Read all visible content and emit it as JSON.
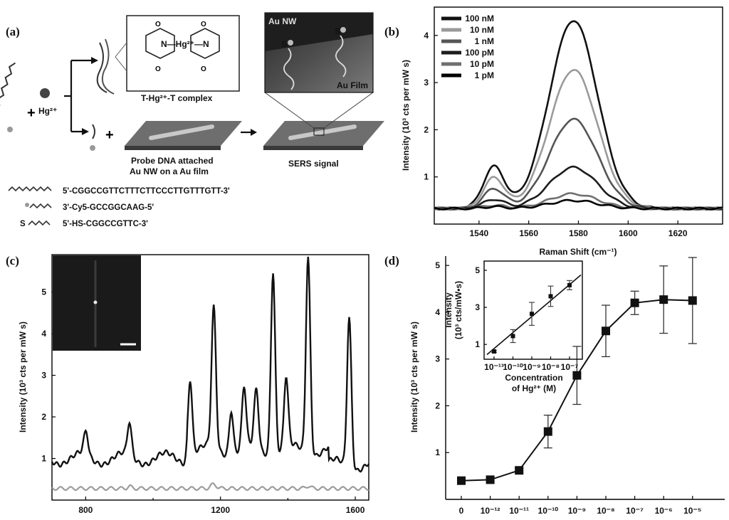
{
  "panel_a": {
    "label": "(a)",
    "hg_label": "Hg²⁺",
    "plus1": "+",
    "plus2": "+",
    "complex_label": "T-Hg²⁺-T complex",
    "hg_center": "N—Hg²⁺—N",
    "probe_label_1": "Probe DNA attached",
    "probe_label_2": "Au NW on a Au film",
    "sers_label": "SERS signal",
    "au_nw": "Au NW",
    "au_film": "Au Film",
    "s_label": "S",
    "seq1": "5'-CGGCCGTTCTTTCTTCCCTTGTTTGTT-3'",
    "seq2": "3'-Cy5-GCCGGCAAG-5'",
    "seq3": "5'-HS-CGGCCGTTC-3'",
    "seq3_prefix": "S"
  },
  "chart_data": [
    {
      "panel": "(b)",
      "type": "line",
      "xlabel": "Raman Shift (cm⁻¹)",
      "ylabel": "Intensity (10³ cts per mW s)",
      "xlim": [
        1522,
        1638
      ],
      "ylim": [
        0,
        4.6
      ],
      "xticks": [
        1540,
        1560,
        1580,
        1600,
        1620
      ],
      "yticks": [
        1,
        2,
        3,
        4
      ],
      "legend": [
        "100 nM",
        "10 nM",
        "1 nM",
        "100 pM",
        "10 pM",
        "1 pM"
      ],
      "legend_colors": [
        "#111111",
        "#9a9a9a",
        "#555555",
        "#1c1c1c",
        "#707070",
        "#000000"
      ],
      "peak_center": 1578,
      "peak_heights": [
        4.32,
        3.27,
        2.22,
        1.2,
        0.64,
        0.5
      ],
      "baseline": 0.33
    },
    {
      "panel": "(c)",
      "type": "line",
      "xlabel": "",
      "ylabel": "Intensity (10³ cts per mW s)",
      "xlim": [
        700,
        1640
      ],
      "ylim": [
        0,
        5.9
      ],
      "xticks": [
        800,
        1200,
        1600
      ],
      "yticks": [
        1,
        2,
        3,
        4,
        5
      ],
      "peaks_black": [
        [
          800,
          1.67
        ],
        [
          930,
          1.85
        ],
        [
          1110,
          2.85
        ],
        [
          1180,
          4.7
        ],
        [
          1232,
          2.1
        ],
        [
          1270,
          2.72
        ],
        [
          1306,
          2.7
        ],
        [
          1356,
          5.45
        ],
        [
          1395,
          2.95
        ],
        [
          1460,
          5.85
        ],
        [
          1582,
          4.4
        ]
      ]
    },
    {
      "panel": "(d)",
      "type": "scatter",
      "xlabel": "",
      "ylabel": "Intensity (10³ cts per mW s)",
      "ylim": [
        0,
        5.2
      ],
      "yticks": [
        1,
        2,
        3,
        4,
        5
      ],
      "categories": [
        "0",
        "10⁻¹²",
        "10⁻¹¹",
        "10⁻¹⁰",
        "10⁻⁹",
        "10⁻⁸",
        "10⁻⁷",
        "10⁻⁶",
        "10⁻⁵"
      ],
      "values": [
        0.4,
        0.42,
        0.62,
        1.45,
        2.65,
        3.6,
        4.2,
        4.27,
        4.25
      ],
      "errors": [
        0.03,
        0.03,
        0.05,
        0.35,
        0.62,
        0.55,
        0.25,
        0.72,
        0.92
      ],
      "inset": {
        "xlabel_1": "Concentration",
        "xlabel_2": "of Hg²⁺ (M)",
        "ylabel_1": "Intensity",
        "ylabel_2": "(10³ cts/mW•s)",
        "categories": [
          "10⁻¹¹",
          "10⁻¹⁰",
          "10⁻⁹",
          "10⁻⁸",
          "10⁻⁷"
        ],
        "values": [
          0.62,
          1.45,
          2.65,
          3.6,
          4.2
        ],
        "errors": [
          0.05,
          0.35,
          0.62,
          0.55,
          0.25
        ],
        "yticks": [
          1,
          3,
          5
        ],
        "ylim": [
          0.2,
          5.5
        ]
      }
    }
  ]
}
